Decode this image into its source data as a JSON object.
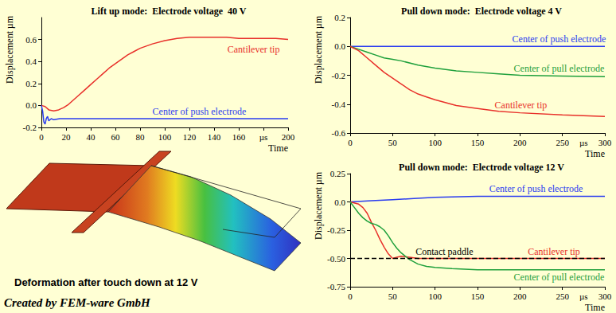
{
  "chart_data": [
    {
      "type": "line",
      "title": "Lift up mode:  Electrode voltage  40 V",
      "x_label": "Time",
      "y_label": "Displacement",
      "y_unit": "µm",
      "xlim": [
        0,
        200
      ],
      "xticks": [
        0,
        20,
        40,
        60,
        80,
        100,
        120,
        140,
        160,
        {
          "value": 180,
          "label": "µs"
        },
        200
      ],
      "ylim": [
        -0.2,
        0.8
      ],
      "yticks": [
        -0.2,
        {
          "value": 0,
          "label": "0.0"
        },
        0.2,
        0.4,
        0.6
      ],
      "grid": false,
      "series": [
        {
          "name": "Cantilever tip",
          "color": "#e8302a",
          "x": [
            0,
            3,
            6,
            10,
            14,
            18,
            22,
            26,
            30,
            35,
            40,
            45,
            50,
            55,
            60,
            65,
            70,
            75,
            80,
            90,
            100,
            110,
            120,
            130,
            140,
            150,
            160,
            170,
            180,
            190,
            200
          ],
          "values": [
            0,
            -0.01,
            -0.04,
            -0.05,
            -0.04,
            -0.02,
            0.01,
            0.05,
            0.09,
            0.14,
            0.19,
            0.24,
            0.29,
            0.34,
            0.38,
            0.42,
            0.46,
            0.49,
            0.52,
            0.56,
            0.59,
            0.61,
            0.62,
            0.62,
            0.62,
            0.62,
            0.61,
            0.61,
            0.61,
            0.61,
            0.6
          ]
        },
        {
          "name": "Center of push electrode",
          "color": "#2a3cf0",
          "x": [
            0,
            1,
            2,
            3,
            4,
            5,
            6,
            8,
            10,
            15,
            20,
            40,
            80,
            120,
            160,
            200
          ],
          "values": [
            0,
            -0.05,
            -0.15,
            -0.17,
            -0.12,
            -0.1,
            -0.14,
            -0.12,
            -0.13,
            -0.12,
            -0.12,
            -0.12,
            -0.12,
            -0.12,
            -0.12,
            -0.12
          ]
        }
      ]
    },
    {
      "type": "line",
      "title": "Pull down mode:  Electrode voltage 4 V",
      "x_label": "Time",
      "x_unit": "µs",
      "y_label": "Displacement",
      "y_unit": "µm",
      "xlim": [
        0,
        300
      ],
      "xticks": [
        0,
        50,
        100,
        150,
        200,
        250,
        300
      ],
      "ylim": [
        -0.6,
        0.2
      ],
      "yticks": [
        -0.6,
        -0.4,
        -0.2,
        {
          "value": 0,
          "label": "0.0"
        },
        0.2
      ],
      "grid": false,
      "series": [
        {
          "name": "Center of push electrode",
          "color": "#2a3cf0",
          "x": [
            0,
            100,
            200,
            300
          ],
          "values": [
            0,
            0,
            0,
            0
          ]
        },
        {
          "name": "Center of pull electrode",
          "color": "#1fa03c",
          "x": [
            0,
            10,
            20,
            30,
            40,
            50,
            60,
            80,
            100,
            125,
            150,
            175,
            200,
            250,
            300
          ],
          "values": [
            0,
            -0.02,
            -0.04,
            -0.06,
            -0.08,
            -0.09,
            -0.1,
            -0.13,
            -0.15,
            -0.17,
            -0.18,
            -0.19,
            -0.2,
            -0.205,
            -0.21
          ]
        },
        {
          "name": "Cantilever tip",
          "color": "#e8302a",
          "x": [
            0,
            10,
            20,
            30,
            40,
            50,
            60,
            70,
            80,
            90,
            100,
            125,
            150,
            175,
            200,
            250,
            300
          ],
          "values": [
            0,
            -0.03,
            -0.08,
            -0.13,
            -0.18,
            -0.22,
            -0.26,
            -0.3,
            -0.33,
            -0.35,
            -0.37,
            -0.41,
            -0.43,
            -0.45,
            -0.46,
            -0.475,
            -0.485
          ]
        }
      ]
    },
    {
      "type": "line",
      "title": "Pull down mode:  Electrode voltage 12 V",
      "x_label": "Time",
      "x_unit": "µs",
      "y_label": "Displacement",
      "y_unit": "µm",
      "xlim": [
        0,
        300
      ],
      "xticks": [
        0,
        50,
        100,
        150,
        200,
        250,
        300
      ],
      "ylim": [
        -0.75,
        0.25
      ],
      "yticks": [
        -0.75,
        {
          "value": -0.5,
          "label": "-0.50"
        },
        -0.25,
        {
          "value": 0,
          "label": "0.0"
        },
        0.25
      ],
      "grid": false,
      "series": [
        {
          "name": "Center of push electrode",
          "color": "#2a3cf0",
          "x": [
            0,
            25,
            50,
            75,
            100,
            150,
            200,
            250,
            300
          ],
          "values": [
            0,
            0.01,
            0.02,
            0.03,
            0.04,
            0.05,
            0.05,
            0.05,
            0.05
          ]
        },
        {
          "name": "Cantilever tip",
          "color": "#e8302a",
          "x": [
            0,
            10,
            15,
            20,
            25,
            30,
            35,
            40,
            45,
            50,
            55,
            60,
            70,
            80,
            100,
            150,
            200,
            250,
            300
          ],
          "values": [
            0,
            -0.02,
            -0.05,
            -0.1,
            -0.18,
            -0.25,
            -0.33,
            -0.4,
            -0.46,
            -0.5,
            -0.49,
            -0.48,
            -0.49,
            -0.5,
            -0.5,
            -0.5,
            -0.5,
            -0.5,
            -0.5
          ]
        },
        {
          "name": "Center of pull electrode",
          "color": "#1fa03c",
          "x": [
            0,
            5,
            10,
            15,
            20,
            25,
            30,
            35,
            40,
            45,
            50,
            55,
            60,
            70,
            80,
            90,
            100,
            120,
            150,
            200,
            250,
            300
          ],
          "values": [
            0,
            -0.05,
            -0.1,
            -0.14,
            -0.17,
            -0.19,
            -0.2,
            -0.22,
            -0.25,
            -0.3,
            -0.36,
            -0.41,
            -0.45,
            -0.51,
            -0.55,
            -0.57,
            -0.58,
            -0.59,
            -0.6,
            -0.6,
            -0.6,
            -0.6
          ]
        },
        {
          "name": "Contact paddle",
          "color": "#000000",
          "line_style": "dashed",
          "x": [
            0,
            300
          ],
          "values": [
            -0.5,
            -0.5
          ]
        }
      ]
    }
  ],
  "illustration": {
    "caption": "Deformation after touch down at 12 V"
  },
  "credit": "Created by FEM-ware GmbH"
}
